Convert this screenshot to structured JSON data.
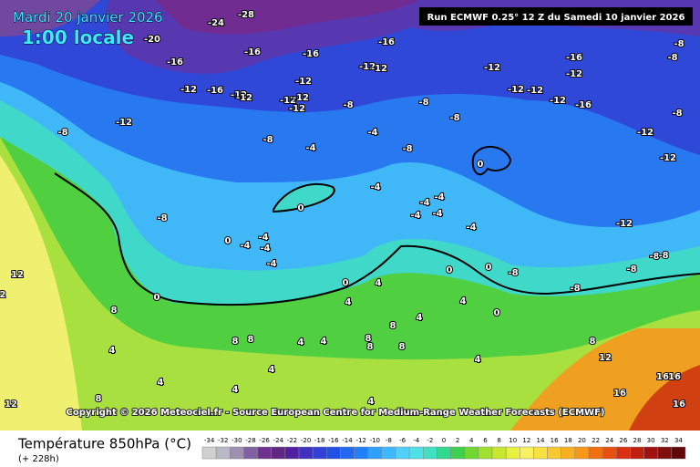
{
  "header": {
    "date": "Mardi 20 janvier 2026",
    "time": "1:00 locale",
    "run": "Run ECMWF 0.25° 12 Z du Samedi 10 janvier 2026"
  },
  "copyright": "Copyright © 2026 Meteociel.fr - Source European Centre for Medium-Range Weather Forecasts (ECMWF)",
  "footer": {
    "title": "Température 850hPa (°C)",
    "lead": "(+ 228h)"
  },
  "legend": {
    "ticks": [
      -34,
      -32,
      -30,
      -28,
      -26,
      -24,
      -22,
      -20,
      -18,
      -16,
      -14,
      -12,
      -10,
      -8,
      -6,
      -4,
      -2,
      0,
      2,
      4,
      6,
      8,
      10,
      12,
      14,
      16,
      18,
      20,
      22,
      24,
      26,
      28,
      30,
      32,
      34
    ]
  },
  "contour_labels": [
    -24,
    -28,
    -20,
    -16,
    -16,
    -16,
    -16,
    -12,
    -12,
    -12,
    -16,
    -12,
    -8,
    -8,
    -12,
    -16,
    -12,
    -12,
    -12,
    -12,
    -12,
    -12,
    -8,
    -8,
    -8,
    -12,
    -12,
    -12,
    -16,
    -8,
    -12,
    -8,
    -8,
    -4,
    -4,
    -8,
    -12,
    -12,
    -4,
    -4,
    -4,
    -8,
    0,
    -4,
    -4,
    -4,
    -12,
    0,
    -4,
    -4,
    -4,
    -4,
    0,
    -8,
    -8,
    -8,
    -8,
    0,
    0,
    12,
    0,
    0,
    -8,
    2,
    8,
    4,
    4,
    4,
    0,
    8,
    8,
    8,
    4,
    4,
    4,
    8,
    8,
    4,
    8,
    4,
    8,
    12,
    4,
    4,
    4,
    16,
    16,
    16,
    12,
    8,
    4,
    16
  ]
}
